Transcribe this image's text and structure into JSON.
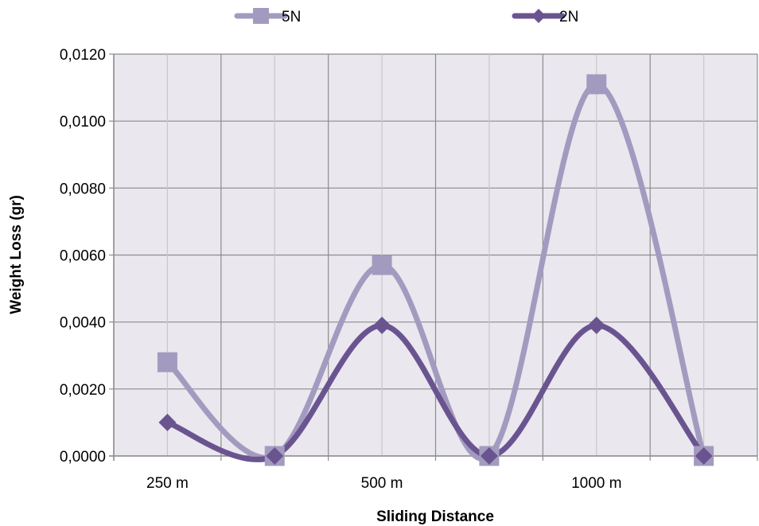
{
  "chart_data": {
    "type": "line",
    "smooth": true,
    "categories": [
      "250 m",
      "",
      "500 m",
      "",
      "1000 m",
      ""
    ],
    "series": [
      {
        "name": "5N",
        "values": [
          0.0028,
          0.0,
          0.0057,
          0.0,
          0.0111,
          0.0
        ],
        "color": "#A39BBF",
        "marker": "square"
      },
      {
        "name": "2N",
        "values": [
          0.001,
          0.0,
          0.0039,
          0.0,
          0.0039,
          0.0
        ],
        "color": "#6A5490",
        "marker": "diamond"
      }
    ],
    "xlabel": "Sliding Distance",
    "ylabel": "Weight Loss (gr)",
    "ylim": [
      0,
      0.012
    ],
    "yticks": [
      "0,0000",
      "0,0020",
      "0,0040",
      "0,0060",
      "0,0080",
      "0,0100",
      "0,0120"
    ],
    "grid": true,
    "plot_background": "#EAE7EF",
    "legend_position": "top"
  }
}
